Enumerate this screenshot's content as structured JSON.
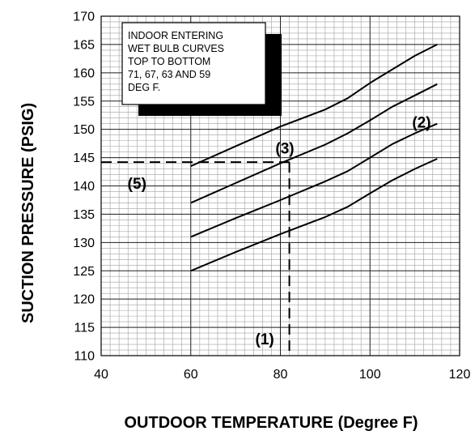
{
  "chart_data": {
    "type": "line",
    "xlabel": "OUTDOOR TEMPERATURE (Degree F)",
    "ylabel": "SUCTION PRESSURE (PSIG)",
    "xlim": [
      40,
      120
    ],
    "ylim": [
      110,
      170
    ],
    "x_ticks": [
      "40",
      "60",
      "80",
      "100",
      "120"
    ],
    "y_ticks": [
      "110",
      "115",
      "120",
      "125",
      "130",
      "135",
      "140",
      "145",
      "150",
      "155",
      "160",
      "165",
      "170"
    ],
    "grid": true,
    "minor_grid": {
      "x_step": 2,
      "y_step": 1
    },
    "note_lines": [
      "INDOOR ENTERING",
      "WET BULB CURVES",
      "TOP TO BOTTOM",
      "71, 67, 63 AND 59",
      "DEG F."
    ],
    "series": [
      {
        "points": [
          [
            60,
            143.5
          ],
          [
            70,
            147
          ],
          [
            80,
            150.5
          ],
          [
            90,
            153.5
          ],
          [
            95,
            155.5
          ],
          [
            100,
            158.2
          ],
          [
            105,
            160.6
          ],
          [
            110,
            163
          ],
          [
            115,
            165
          ]
        ]
      },
      {
        "points": [
          [
            60,
            137
          ],
          [
            70,
            140.5
          ],
          [
            80,
            144
          ],
          [
            90,
            147.3
          ],
          [
            95,
            149.3
          ],
          [
            100,
            151.6
          ],
          [
            105,
            154
          ],
          [
            110,
            156
          ],
          [
            115,
            158
          ]
        ]
      },
      {
        "points": [
          [
            60,
            131
          ],
          [
            70,
            134.3
          ],
          [
            80,
            137.5
          ],
          [
            90,
            140.8
          ],
          [
            95,
            142.6
          ],
          [
            100,
            145
          ],
          [
            105,
            147.4
          ],
          [
            110,
            149.3
          ],
          [
            115,
            151
          ]
        ]
      },
      {
        "points": [
          [
            60,
            125
          ],
          [
            70,
            128.3
          ],
          [
            80,
            131.5
          ],
          [
            90,
            134.5
          ],
          [
            95,
            136.3
          ],
          [
            100,
            138.7
          ],
          [
            105,
            141
          ],
          [
            110,
            143
          ],
          [
            115,
            144.8
          ]
        ]
      }
    ],
    "reference_lines": [
      {
        "from": [
          40,
          144.2
        ],
        "to": [
          82,
          144.2
        ]
      },
      {
        "from": [
          82,
          144.2
        ],
        "to": [
          82,
          110
        ]
      }
    ],
    "annotations": [
      {
        "text": "(1)",
        "x": 76.5,
        "y": 112
      },
      {
        "text": "(2)",
        "x": 111.5,
        "y": 150.3
      },
      {
        "text": "(3)",
        "x": 81,
        "y": 145.7
      },
      {
        "text": "(5)",
        "x": 48,
        "y": 139.5
      }
    ]
  }
}
